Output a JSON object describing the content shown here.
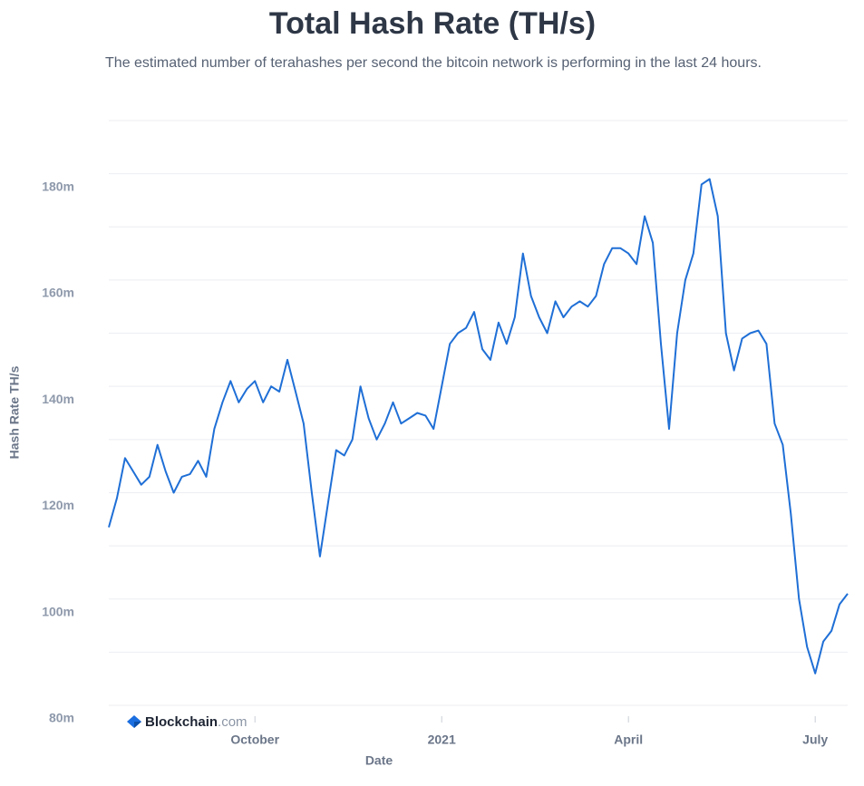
{
  "chart_data": {
    "type": "line",
    "title": "Total Hash Rate (TH/s)",
    "subtitle": "The estimated number of terahashes per second the bitcoin network is performing in the last 24 hours.",
    "y_label": "Hash Rate TH/s",
    "x_label": "Date",
    "watermark": [
      "Blockchain",
      ".com"
    ],
    "color": "#1f6fd6",
    "grid": true,
    "ylim": [
      80000000,
      190000000
    ],
    "yticks": [
      {
        "value": 80000000,
        "label": "80m"
      },
      {
        "value": 100000000,
        "label": "100m"
      },
      {
        "value": 120000000,
        "label": "120m"
      },
      {
        "value": 140000000,
        "label": "140m"
      },
      {
        "value": 160000000,
        "label": "160m"
      },
      {
        "value": 180000000,
        "label": "180m"
      }
    ],
    "yticks_minor": [
      90000000,
      110000000,
      130000000,
      150000000,
      170000000,
      190000000
    ],
    "categories": [
      null,
      null,
      null,
      null,
      null,
      null,
      null,
      null,
      null,
      null,
      null,
      null,
      null,
      null,
      null,
      null,
      null,
      null,
      "October",
      null,
      null,
      null,
      null,
      null,
      null,
      null,
      null,
      null,
      null,
      null,
      null,
      null,
      null,
      null,
      null,
      null,
      null,
      null,
      null,
      null,
      null,
      "2021",
      null,
      null,
      null,
      null,
      null,
      null,
      null,
      null,
      null,
      null,
      null,
      null,
      null,
      null,
      null,
      null,
      null,
      null,
      null,
      null,
      null,
      null,
      "April",
      null,
      null,
      null,
      null,
      null,
      null,
      null,
      null,
      null,
      null,
      null,
      null,
      null,
      null,
      null,
      null,
      null,
      null,
      null,
      null,
      null,
      null,
      "July",
      null,
      null,
      null,
      null
    ],
    "values": [
      113500000,
      119000000,
      126500000,
      124000000,
      121500000,
      123000000,
      129000000,
      124000000,
      120000000,
      123000000,
      123500000,
      126000000,
      123000000,
      132000000,
      137000000,
      141000000,
      137000000,
      139500000,
      141000000,
      137000000,
      140000000,
      139000000,
      145000000,
      139000000,
      133000000,
      120000000,
      108000000,
      118000000,
      128000000,
      127000000,
      130000000,
      140000000,
      134000000,
      130000000,
      133000000,
      137000000,
      133000000,
      134000000,
      135000000,
      134500000,
      132000000,
      140000000,
      148000000,
      150000000,
      151000000,
      154000000,
      147000000,
      145000000,
      152000000,
      148000000,
      153000000,
      165000000,
      157000000,
      153000000,
      150000000,
      156000000,
      153000000,
      155000000,
      156000000,
      155000000,
      157000000,
      163000000,
      166000000,
      166000000,
      165000000,
      163000000,
      172000000,
      167000000,
      148000000,
      132000000,
      150000000,
      160000000,
      165000000,
      178000000,
      179000000,
      172000000,
      150000000,
      143000000,
      149000000,
      150000000,
      150500000,
      148000000,
      133000000,
      129000000,
      116000000,
      100000000,
      91000000,
      86000000,
      92000000,
      94000000,
      99000000,
      101000000
    ]
  }
}
